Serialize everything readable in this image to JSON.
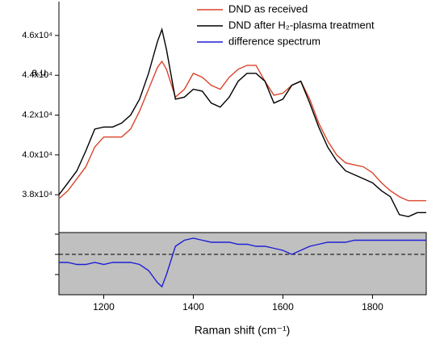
{
  "chart_data": {
    "type": "line",
    "x_label": "Raman shift (cm⁻¹)",
    "y_label": "a.u.",
    "x": [
      1100,
      1120,
      1140,
      1160,
      1180,
      1200,
      1220,
      1240,
      1260,
      1280,
      1300,
      1320,
      1330,
      1340,
      1360,
      1380,
      1400,
      1420,
      1440,
      1460,
      1480,
      1500,
      1520,
      1540,
      1560,
      1580,
      1600,
      1620,
      1640,
      1660,
      1680,
      1700,
      1720,
      1740,
      1760,
      1780,
      1800,
      1820,
      1840,
      1860,
      1880,
      1900,
      1920
    ],
    "series": [
      {
        "name": "DND as received",
        "color": "#d9452b",
        "values": [
          37800,
          38200,
          38800,
          39400,
          40400,
          40900,
          40900,
          40900,
          41300,
          42200,
          43300,
          44400,
          44700,
          44300,
          42900,
          43300,
          44100,
          43900,
          43500,
          43300,
          43900,
          44300,
          44500,
          44500,
          43700,
          43000,
          43100,
          43500,
          43700,
          42800,
          41600,
          40700,
          40000,
          39600,
          39500,
          39400,
          39100,
          38600,
          38200,
          37900,
          37700,
          37700,
          37700
        ]
      },
      {
        "name": "DND after H₂-plasma treatment",
        "color": "#000000",
        "values": [
          38000,
          38600,
          39200,
          40200,
          41300,
          41400,
          41400,
          41600,
          42000,
          42800,
          44100,
          45700,
          46300,
          45300,
          42800,
          42900,
          43300,
          43200,
          42600,
          42400,
          42900,
          43700,
          44100,
          44100,
          43700,
          42600,
          42800,
          43500,
          43700,
          42600,
          41400,
          40400,
          39700,
          39200,
          39000,
          38800,
          38600,
          38200,
          37900,
          37000,
          36900,
          37100,
          37100
        ]
      },
      {
        "name": "difference spectrum",
        "color": "#1f1fd6",
        "axis": "y2",
        "values": [
          -0.4,
          -0.4,
          -0.5,
          -0.5,
          -0.4,
          -0.5,
          -0.4,
          -0.4,
          -0.4,
          -0.5,
          -0.8,
          -1.4,
          -1.6,
          -1.0,
          0.4,
          0.7,
          0.8,
          0.7,
          0.6,
          0.6,
          0.6,
          0.5,
          0.5,
          0.4,
          0.4,
          0.3,
          0.2,
          0.0,
          0.2,
          0.4,
          0.5,
          0.6,
          0.6,
          0.6,
          0.7,
          0.7,
          0.7,
          0.7,
          0.7,
          0.7,
          0.7,
          0.7,
          0.7
        ]
      }
    ],
    "xlim": [
      1100,
      1920
    ],
    "xticks": [
      1200,
      1400,
      1600,
      1800
    ],
    "ylim": [
      36100,
      47700
    ],
    "yticks": [
      {
        "value": 38000,
        "label": "3.8x10⁴"
      },
      {
        "value": 40000,
        "label": "4.0x10⁴"
      },
      {
        "value": 42000,
        "label": "4.2x10⁴"
      },
      {
        "value": 44000,
        "label": "4.4x10⁴"
      },
      {
        "value": 46000,
        "label": "4.6x10⁴"
      }
    ],
    "y2lim": [
      -2,
      1.08
    ],
    "y2ticks": [
      -1,
      0,
      1
    ],
    "legend": "top-right"
  }
}
